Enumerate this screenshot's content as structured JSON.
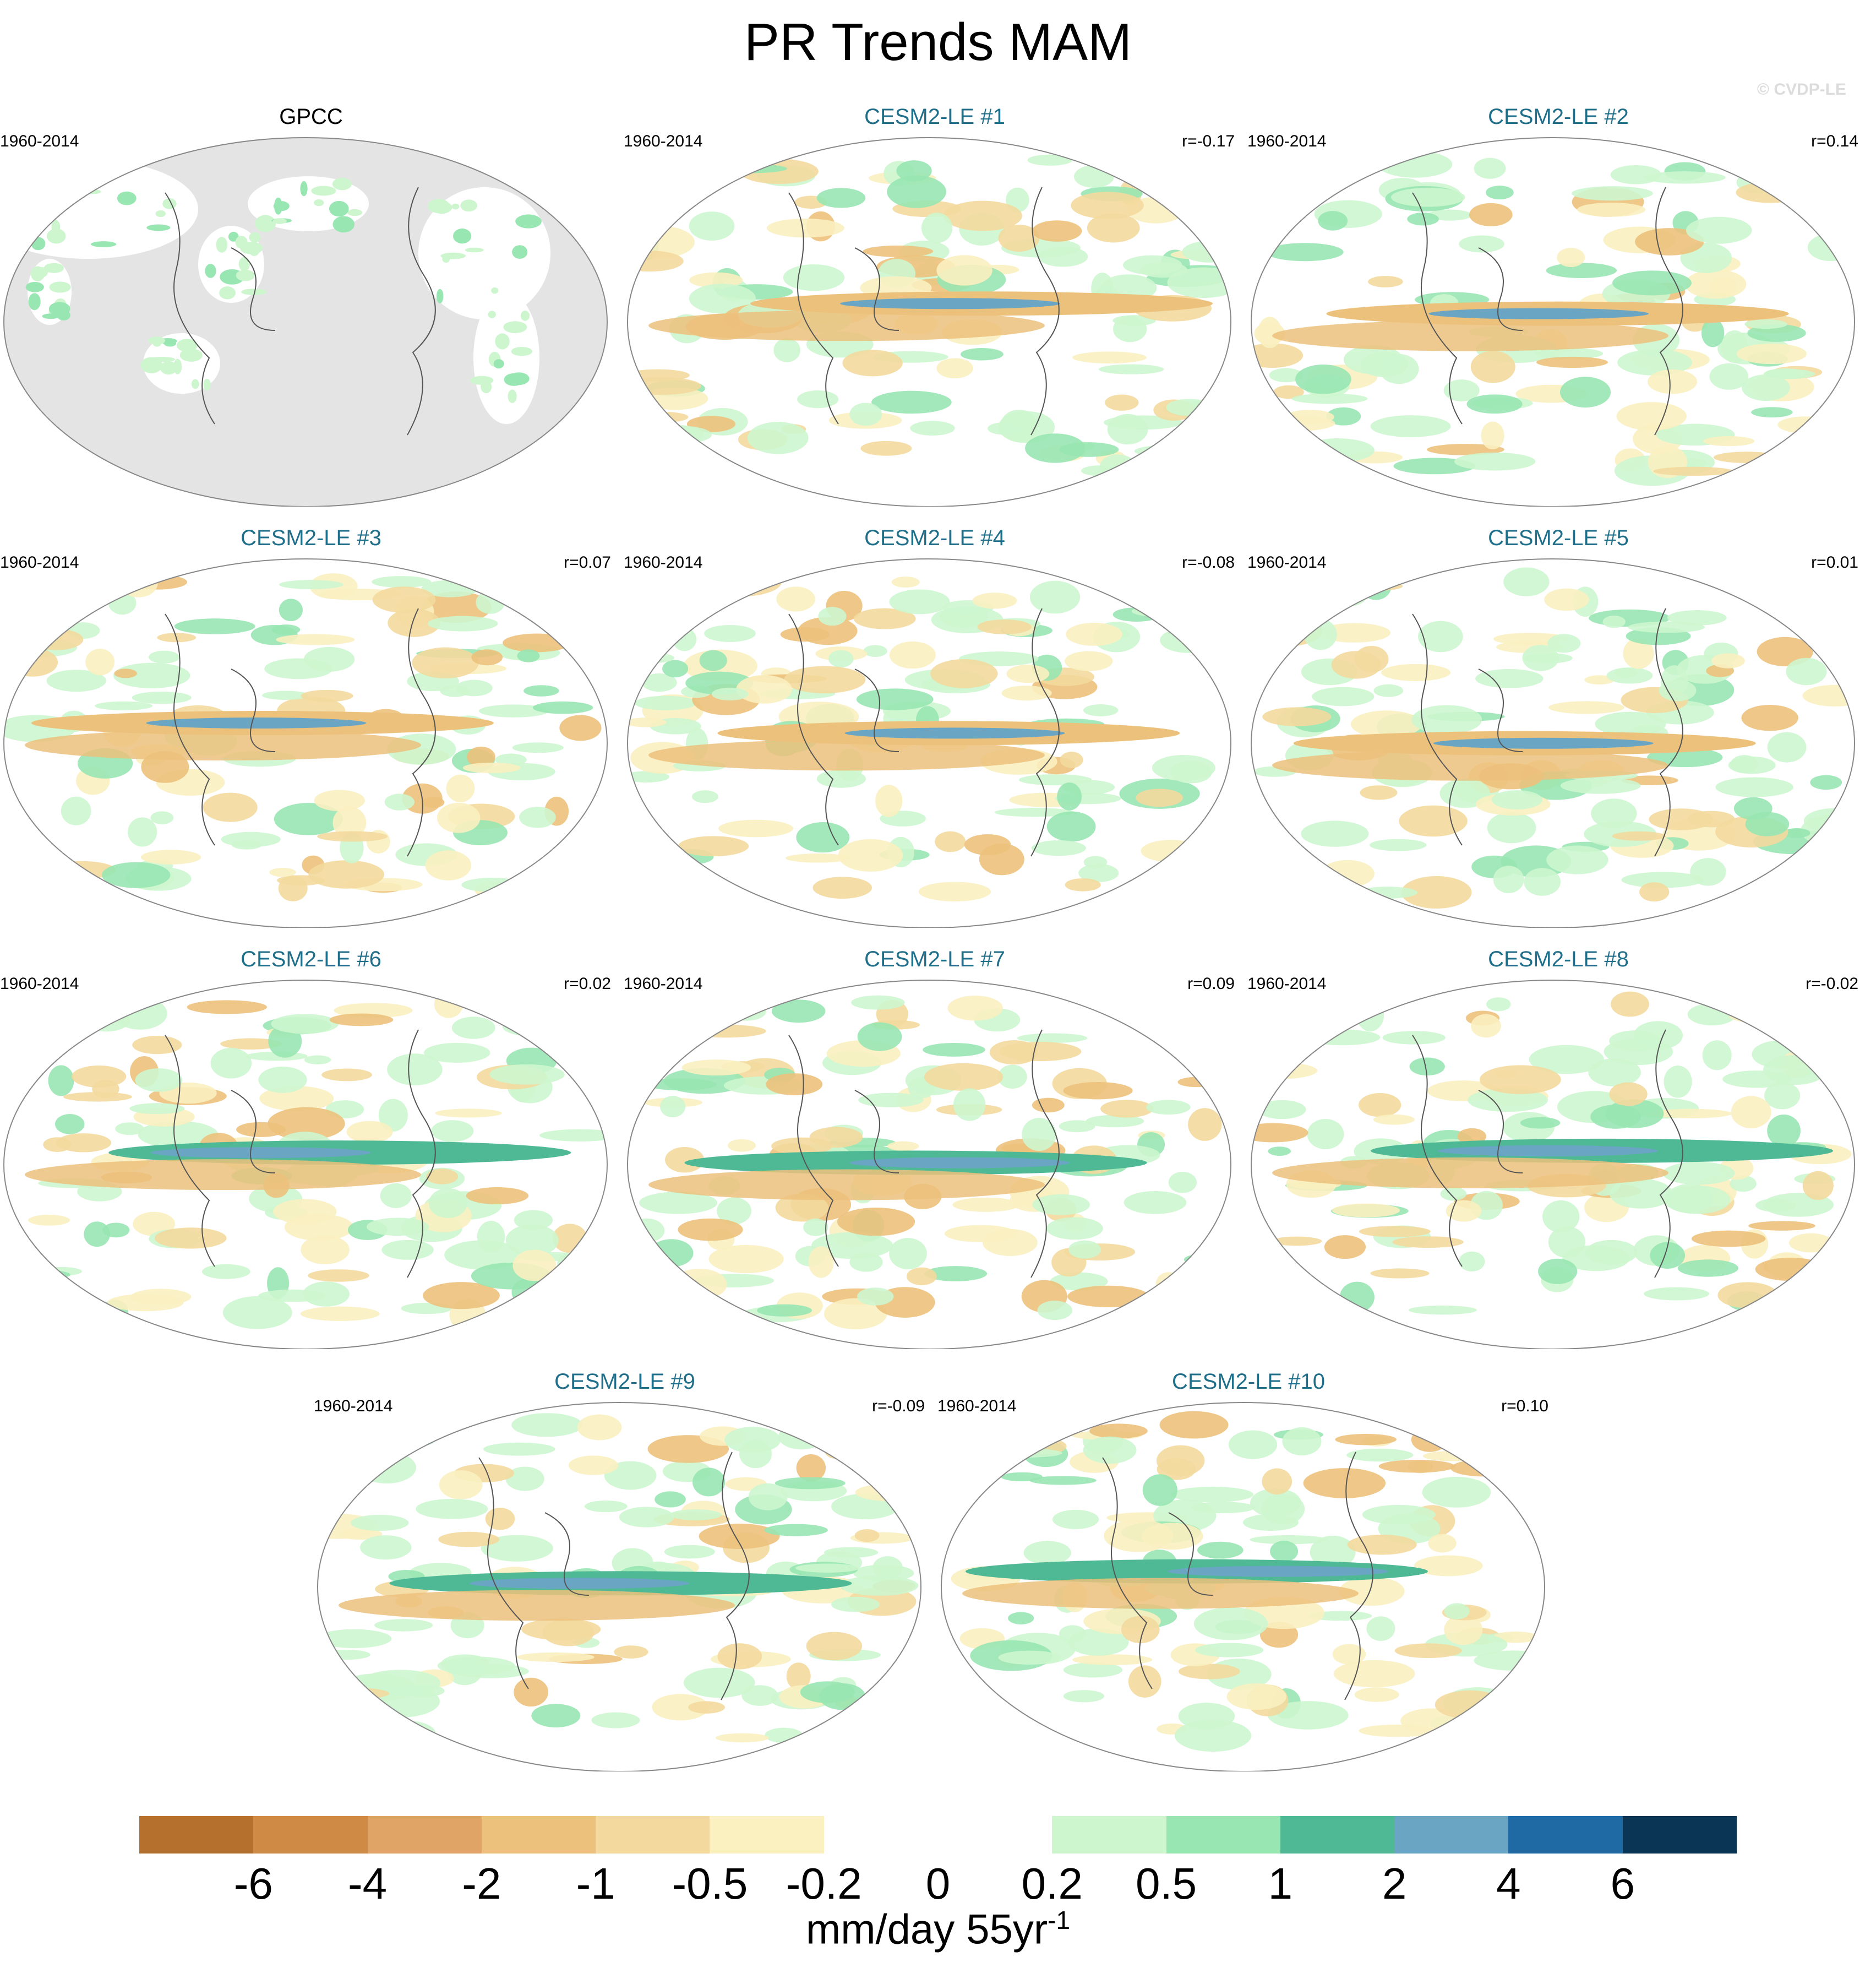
{
  "title": "PR Trends MAM",
  "watermark": "© CVDP-LE",
  "panels": [
    {
      "name": "GPCC",
      "period": "1960-2014",
      "corr": "",
      "title_color": "#000000",
      "obs": true
    },
    {
      "name": "CESM2-LE #1",
      "period": "1960-2014",
      "corr": "r=-0.17",
      "title_color": "#1f6f8b"
    },
    {
      "name": "CESM2-LE #2",
      "period": "1960-2014",
      "corr": "r=0.14",
      "title_color": "#1f6f8b"
    },
    {
      "name": "CESM2-LE #3",
      "period": "1960-2014",
      "corr": "r=0.07",
      "title_color": "#1f6f8b"
    },
    {
      "name": "CESM2-LE #4",
      "period": "1960-2014",
      "corr": "r=-0.08",
      "title_color": "#1f6f8b"
    },
    {
      "name": "CESM2-LE #5",
      "period": "1960-2014",
      "corr": "r=0.01",
      "title_color": "#1f6f8b"
    },
    {
      "name": "CESM2-LE #6",
      "period": "1960-2014",
      "corr": "r=0.02",
      "title_color": "#1f6f8b"
    },
    {
      "name": "CESM2-LE #7",
      "period": "1960-2014",
      "corr": "r=0.09",
      "title_color": "#1f6f8b"
    },
    {
      "name": "CESM2-LE #8",
      "period": "1960-2014",
      "corr": "r=-0.02",
      "title_color": "#1f6f8b"
    },
    {
      "name": "CESM2-LE #9",
      "period": "1960-2014",
      "corr": "r=-0.09",
      "title_color": "#1f6f8b"
    },
    {
      "name": "CESM2-LE #10",
      "period": "1960-2014",
      "corr": "r=0.10",
      "title_color": "#1f6f8b"
    }
  ],
  "colorbar": {
    "colors": [
      "#b5702e",
      "#cf8a45",
      "#dfa466",
      "#ecc17c",
      "#f3d99d",
      "#faf0c0",
      "#ffffff",
      "#ffffff",
      "#cdf6cf",
      "#98e6b2",
      "#4fb996",
      "#6aa6c4",
      "#1f6aa5",
      "#0b3554"
    ],
    "labels": [
      "-6",
      "-4",
      "-2",
      "-1",
      "-0.5",
      "-0.2",
      "0",
      "0.2",
      "0.5",
      "1",
      "2",
      "4",
      "6"
    ],
    "units": "mm/day 55yr",
    "units_sup": "-1"
  }
}
